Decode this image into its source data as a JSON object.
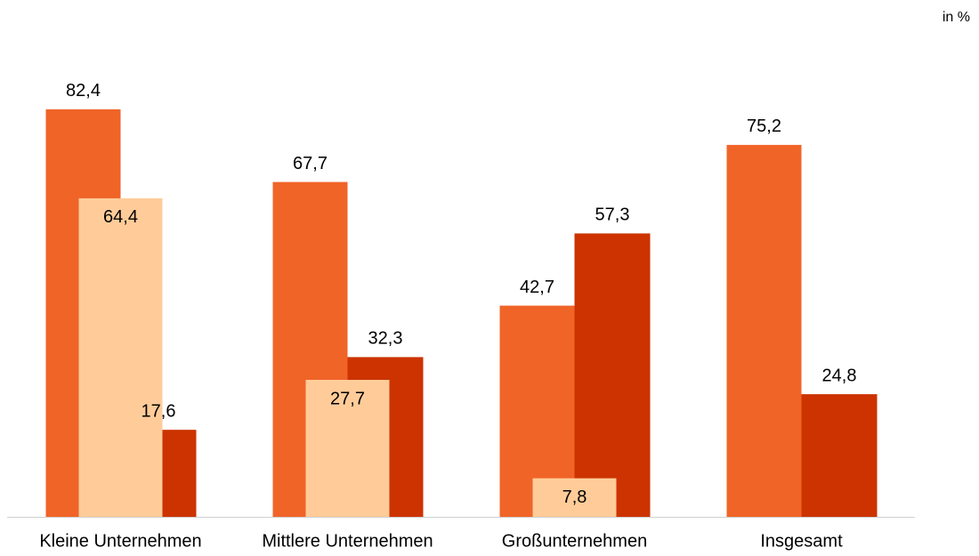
{
  "chart_data": {
    "type": "bar",
    "unit": "in %",
    "categories": [
      "Kleine Unternehmen",
      "Mittlere Unternehmen",
      "Großunternehmen",
      "Insgesamt"
    ],
    "series": [
      {
        "color": "#f06428",
        "values": [
          82.4,
          67.7,
          42.7,
          75.2
        ],
        "value_labels": [
          "82,4",
          "67,7",
          "42,7",
          "75,2"
        ]
      },
      {
        "color": "#cc3300",
        "values": [
          17.6,
          32.3,
          57.3,
          24.8
        ],
        "value_labels": [
          "17,6",
          "32,3",
          "57,3",
          "24,8"
        ]
      },
      {
        "color": "#ffcc99",
        "values": [
          64.4,
          27.7,
          7.8,
          null
        ],
        "value_labels": [
          "64,4",
          "27,7",
          "7,8",
          null
        ]
      }
    ],
    "ylim": [
      0,
      100
    ]
  }
}
